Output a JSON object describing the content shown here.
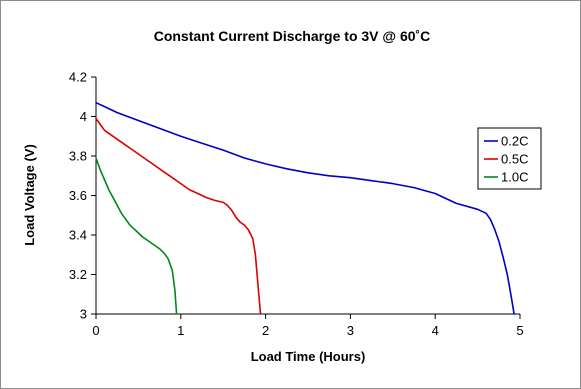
{
  "chart_data": {
    "type": "line",
    "title": "Constant Current Discharge to 3V @ 60˚C",
    "xlabel": "Load Time (Hours)",
    "ylabel": "Load Voltage (V)",
    "xlim": [
      0,
      5
    ],
    "ylim": [
      3,
      4.2
    ],
    "x_ticks": [
      "0",
      "1",
      "2",
      "3",
      "4",
      "5"
    ],
    "y_ticks": [
      "3",
      "3.2",
      "3.4",
      "3.6",
      "3.8",
      "4",
      "4.2"
    ],
    "grid": false,
    "legend_position": "right",
    "series": [
      {
        "name": "0.2C",
        "color": "#0000cc",
        "points": [
          [
            0,
            4.07
          ],
          [
            0.1,
            4.05
          ],
          [
            0.25,
            4.02
          ],
          [
            0.5,
            3.98
          ],
          [
            0.75,
            3.94
          ],
          [
            1,
            3.9
          ],
          [
            1.25,
            3.865
          ],
          [
            1.5,
            3.83
          ],
          [
            1.75,
            3.79
          ],
          [
            2,
            3.76
          ],
          [
            2.25,
            3.735
          ],
          [
            2.5,
            3.715
          ],
          [
            2.75,
            3.7
          ],
          [
            3,
            3.69
          ],
          [
            3.25,
            3.675
          ],
          [
            3.5,
            3.66
          ],
          [
            3.75,
            3.64
          ],
          [
            4,
            3.61
          ],
          [
            4.1,
            3.59
          ],
          [
            4.25,
            3.56
          ],
          [
            4.5,
            3.53
          ],
          [
            4.6,
            3.51
          ],
          [
            4.65,
            3.48
          ],
          [
            4.7,
            3.43
          ],
          [
            4.75,
            3.37
          ],
          [
            4.8,
            3.29
          ],
          [
            4.85,
            3.2
          ],
          [
            4.9,
            3.08
          ],
          [
            4.93,
            3.0
          ]
        ]
      },
      {
        "name": "0.5C",
        "color": "#dd0000",
        "points": [
          [
            0,
            3.99
          ],
          [
            0.05,
            3.96
          ],
          [
            0.1,
            3.93
          ],
          [
            0.2,
            3.9
          ],
          [
            0.3,
            3.87
          ],
          [
            0.4,
            3.84
          ],
          [
            0.5,
            3.81
          ],
          [
            0.6,
            3.78
          ],
          [
            0.7,
            3.75
          ],
          [
            0.8,
            3.72
          ],
          [
            0.9,
            3.69
          ],
          [
            1,
            3.66
          ],
          [
            1.1,
            3.63
          ],
          [
            1.2,
            3.61
          ],
          [
            1.3,
            3.59
          ],
          [
            1.4,
            3.575
          ],
          [
            1.5,
            3.565
          ],
          [
            1.55,
            3.55
          ],
          [
            1.6,
            3.525
          ],
          [
            1.65,
            3.49
          ],
          [
            1.7,
            3.465
          ],
          [
            1.75,
            3.45
          ],
          [
            1.8,
            3.425
          ],
          [
            1.85,
            3.38
          ],
          [
            1.88,
            3.3
          ],
          [
            1.9,
            3.2
          ],
          [
            1.92,
            3.1
          ],
          [
            1.94,
            3.0
          ]
        ]
      },
      {
        "name": "1.0C",
        "color": "#00881a",
        "points": [
          [
            0,
            3.79
          ],
          [
            0.05,
            3.73
          ],
          [
            0.1,
            3.68
          ],
          [
            0.15,
            3.63
          ],
          [
            0.2,
            3.59
          ],
          [
            0.25,
            3.55
          ],
          [
            0.3,
            3.51
          ],
          [
            0.35,
            3.48
          ],
          [
            0.4,
            3.45
          ],
          [
            0.45,
            3.43
          ],
          [
            0.5,
            3.41
          ],
          [
            0.55,
            3.39
          ],
          [
            0.6,
            3.375
          ],
          [
            0.65,
            3.36
          ],
          [
            0.7,
            3.345
          ],
          [
            0.75,
            3.33
          ],
          [
            0.8,
            3.31
          ],
          [
            0.85,
            3.28
          ],
          [
            0.9,
            3.22
          ],
          [
            0.93,
            3.12
          ],
          [
            0.95,
            3.0
          ]
        ]
      }
    ]
  }
}
